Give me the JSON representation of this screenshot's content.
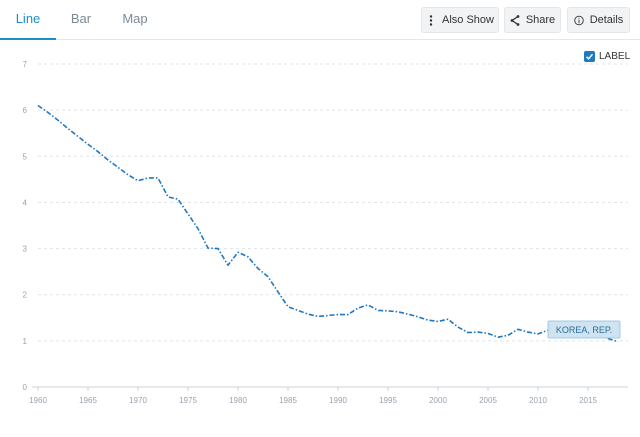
{
  "tabs": [
    {
      "label": "Line",
      "active": true
    },
    {
      "label": "Bar",
      "active": false
    },
    {
      "label": "Map",
      "active": false
    }
  ],
  "toolbar": {
    "also_show": "Also Show",
    "share": "Share",
    "details": "Details"
  },
  "label_toggle": {
    "text": "LABEL",
    "checked": true
  },
  "colors": {
    "accent": "#1f8ec7",
    "series": "#1f78c1",
    "label_bg": "#cfe3f1"
  },
  "chart_data": {
    "type": "line",
    "title": "",
    "xlabel": "",
    "ylabel": "",
    "xlim": [
      1960,
      2019
    ],
    "ylim": [
      0,
      7
    ],
    "y_ticks": [
      0,
      1,
      2,
      3,
      4,
      5,
      6,
      7
    ],
    "x_ticks": [
      1960,
      1965,
      1970,
      1975,
      1980,
      1985,
      1990,
      1995,
      2000,
      2005,
      2010,
      2015
    ],
    "grid": true,
    "series": [
      {
        "name": "KOREA, REP.",
        "x": [
          1960,
          1961,
          1962,
          1963,
          1964,
          1965,
          1966,
          1967,
          1968,
          1969,
          1970,
          1971,
          1972,
          1973,
          1974,
          1975,
          1976,
          1977,
          1978,
          1979,
          1980,
          1981,
          1982,
          1983,
          1984,
          1985,
          1986,
          1987,
          1988,
          1989,
          1990,
          1991,
          1992,
          1993,
          1994,
          1995,
          1996,
          1997,
          1998,
          1999,
          2000,
          2001,
          2002,
          2003,
          2004,
          2005,
          2006,
          2007,
          2008,
          2009,
          2010,
          2011,
          2012,
          2013,
          2014,
          2015,
          2016,
          2017,
          2018
        ],
        "y": [
          6.1,
          5.95,
          5.78,
          5.6,
          5.43,
          5.26,
          5.1,
          4.92,
          4.76,
          4.6,
          4.47,
          4.53,
          4.53,
          4.12,
          4.07,
          3.75,
          3.43,
          3.01,
          3.0,
          2.64,
          2.92,
          2.82,
          2.57,
          2.39,
          2.06,
          1.74,
          1.66,
          1.58,
          1.53,
          1.55,
          1.57,
          1.57,
          1.71,
          1.78,
          1.66,
          1.65,
          1.63,
          1.58,
          1.52,
          1.45,
          1.42,
          1.47,
          1.3,
          1.18,
          1.19,
          1.16,
          1.08,
          1.12,
          1.25,
          1.19,
          1.15,
          1.23,
          1.24,
          1.19,
          1.21,
          1.24,
          1.17,
          1.05,
          0.98
        ]
      }
    ]
  }
}
